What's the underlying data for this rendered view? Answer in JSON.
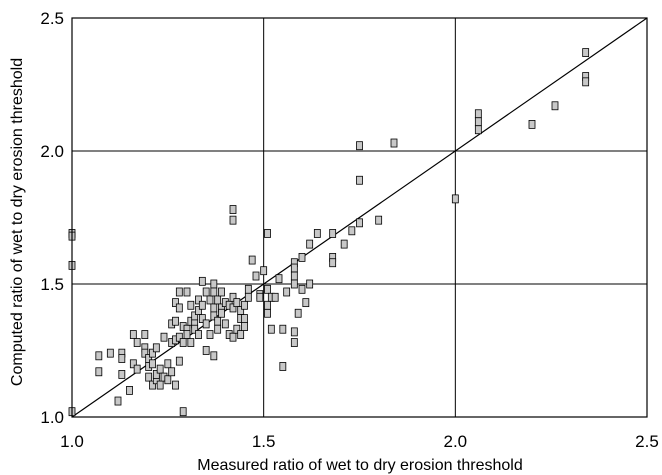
{
  "chart_data": {
    "type": "scatter",
    "title": "",
    "xlabel": "Measured ratio of wet to dry erosion threshold",
    "ylabel": "Computed ratio of wet to dry erosion threshold",
    "xlim": [
      1.0,
      2.5
    ],
    "ylim": [
      1.0,
      2.5
    ],
    "xticks": [
      "1.0",
      "1.5",
      "2.0",
      "2.5"
    ],
    "yticks": [
      "1.0",
      "1.5",
      "2.0",
      "2.5"
    ],
    "grid": true,
    "reference_line": {
      "from": [
        1.0,
        1.0
      ],
      "to": [
        2.5,
        2.5
      ]
    },
    "marker_color": "#c8c8c8",
    "points": [
      [
        1.0,
        1.69
      ],
      [
        1.0,
        1.68
      ],
      [
        1.0,
        1.57
      ],
      [
        1.0,
        1.02
      ],
      [
        1.07,
        1.23
      ],
      [
        1.07,
        1.17
      ],
      [
        1.1,
        1.24
      ],
      [
        1.12,
        1.06
      ],
      [
        1.13,
        1.24
      ],
      [
        1.13,
        1.22
      ],
      [
        1.13,
        1.16
      ],
      [
        1.15,
        1.1
      ],
      [
        1.16,
        1.2
      ],
      [
        1.16,
        1.31
      ],
      [
        1.17,
        1.28
      ],
      [
        1.17,
        1.18
      ],
      [
        1.19,
        1.26
      ],
      [
        1.19,
        1.24
      ],
      [
        1.19,
        1.31
      ],
      [
        1.2,
        1.22
      ],
      [
        1.2,
        1.19
      ],
      [
        1.2,
        1.15
      ],
      [
        1.21,
        1.24
      ],
      [
        1.21,
        1.2
      ],
      [
        1.21,
        1.12
      ],
      [
        1.22,
        1.14
      ],
      [
        1.22,
        1.16
      ],
      [
        1.22,
        1.26
      ],
      [
        1.23,
        1.18
      ],
      [
        1.23,
        1.12
      ],
      [
        1.24,
        1.15
      ],
      [
        1.24,
        1.3
      ],
      [
        1.25,
        1.2
      ],
      [
        1.25,
        1.14
      ],
      [
        1.26,
        1.17
      ],
      [
        1.26,
        1.35
      ],
      [
        1.26,
        1.28
      ],
      [
        1.27,
        1.12
      ],
      [
        1.27,
        1.43
      ],
      [
        1.27,
        1.36
      ],
      [
        1.27,
        1.29
      ],
      [
        1.28,
        1.47
      ],
      [
        1.28,
        1.41
      ],
      [
        1.28,
        1.3
      ],
      [
        1.28,
        1.21
      ],
      [
        1.29,
        1.34
      ],
      [
        1.29,
        1.28
      ],
      [
        1.29,
        1.02
      ],
      [
        1.3,
        1.47
      ],
      [
        1.3,
        1.33
      ],
      [
        1.3,
        1.31
      ],
      [
        1.31,
        1.42
      ],
      [
        1.31,
        1.36
      ],
      [
        1.31,
        1.28
      ],
      [
        1.32,
        1.38
      ],
      [
        1.32,
        1.35
      ],
      [
        1.32,
        1.33
      ],
      [
        1.33,
        1.44
      ],
      [
        1.33,
        1.4
      ],
      [
        1.33,
        1.31
      ],
      [
        1.34,
        1.51
      ],
      [
        1.34,
        1.37
      ],
      [
        1.34,
        1.42
      ],
      [
        1.35,
        1.47
      ],
      [
        1.35,
        1.35
      ],
      [
        1.35,
        1.25
      ],
      [
        1.36,
        1.44
      ],
      [
        1.36,
        1.31
      ],
      [
        1.37,
        1.5
      ],
      [
        1.37,
        1.47
      ],
      [
        1.37,
        1.41
      ],
      [
        1.37,
        1.38
      ],
      [
        1.37,
        1.23
      ],
      [
        1.38,
        1.44
      ],
      [
        1.38,
        1.36
      ],
      [
        1.38,
        1.33
      ],
      [
        1.39,
        1.47
      ],
      [
        1.39,
        1.41
      ],
      [
        1.39,
        1.39
      ],
      [
        1.4,
        1.43
      ],
      [
        1.4,
        1.35
      ],
      [
        1.41,
        1.31
      ],
      [
        1.41,
        1.42
      ],
      [
        1.42,
        1.78
      ],
      [
        1.42,
        1.74
      ],
      [
        1.42,
        1.45
      ],
      [
        1.42,
        1.41
      ],
      [
        1.42,
        1.3
      ],
      [
        1.43,
        1.43
      ],
      [
        1.43,
        1.33
      ],
      [
        1.44,
        1.4
      ],
      [
        1.44,
        1.37
      ],
      [
        1.44,
        1.31
      ],
      [
        1.45,
        1.34
      ],
      [
        1.45,
        1.42
      ],
      [
        1.45,
        1.37
      ],
      [
        1.46,
        1.48
      ],
      [
        1.46,
        1.45
      ],
      [
        1.47,
        1.59
      ],
      [
        1.48,
        1.53
      ],
      [
        1.49,
        1.46
      ],
      [
        1.49,
        1.45
      ],
      [
        1.5,
        1.55
      ],
      [
        1.51,
        1.39
      ],
      [
        1.51,
        1.48
      ],
      [
        1.51,
        1.42
      ],
      [
        1.51,
        1.69
      ],
      [
        1.52,
        1.45
      ],
      [
        1.52,
        1.33
      ],
      [
        1.53,
        1.45
      ],
      [
        1.54,
        1.52
      ],
      [
        1.55,
        1.19
      ],
      [
        1.55,
        1.33
      ],
      [
        1.56,
        1.47
      ],
      [
        1.58,
        1.58
      ],
      [
        1.58,
        1.56
      ],
      [
        1.58,
        1.53
      ],
      [
        1.58,
        1.5
      ],
      [
        1.58,
        1.32
      ],
      [
        1.58,
        1.28
      ],
      [
        1.59,
        1.39
      ],
      [
        1.6,
        1.48
      ],
      [
        1.6,
        1.6
      ],
      [
        1.61,
        1.43
      ],
      [
        1.62,
        1.5
      ],
      [
        1.62,
        1.65
      ],
      [
        1.64,
        1.69
      ],
      [
        1.68,
        1.6
      ],
      [
        1.68,
        1.58
      ],
      [
        1.68,
        1.69
      ],
      [
        1.71,
        1.65
      ],
      [
        1.73,
        1.7
      ],
      [
        1.75,
        2.02
      ],
      [
        1.75,
        1.89
      ],
      [
        1.75,
        1.73
      ],
      [
        1.8,
        1.74
      ],
      [
        1.84,
        2.03
      ],
      [
        2.0,
        1.82
      ],
      [
        2.06,
        2.14
      ],
      [
        2.06,
        2.11
      ],
      [
        2.06,
        2.08
      ],
      [
        2.2,
        2.1
      ],
      [
        2.26,
        2.17
      ],
      [
        2.34,
        2.37
      ],
      [
        2.34,
        2.28
      ],
      [
        2.34,
        2.26
      ]
    ]
  }
}
